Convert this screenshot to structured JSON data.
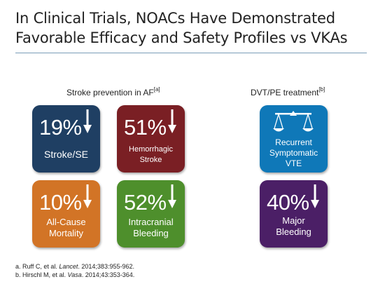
{
  "title": {
    "line1": "In Clinical Trials, NOACs Have Demonstrated",
    "line2": "Favorable Efficacy and Safety Profiles vs VKAs"
  },
  "sections": {
    "af": {
      "label": "Stroke prevention in AF",
      "ref": "[a]"
    },
    "dvt": {
      "label": "DVT/PE treatment",
      "ref": "[b]"
    }
  },
  "tiles": {
    "stroke": {
      "pct": "19%",
      "label": "Stroke/SE",
      "color": "#1f3f63",
      "direction": "down-arrow-icon"
    },
    "hemo": {
      "pct": "51%",
      "label": "Hemorrhagic\nStroke",
      "color": "#7a1f24",
      "direction": "down-arrow-icon"
    },
    "mort": {
      "pct": "10%",
      "label": "All-Cause\nMortality",
      "color": "#d27426",
      "direction": "down-arrow-icon"
    },
    "ich": {
      "pct": "52%",
      "label": "Intracranial\nBleeding",
      "color": "#4e8f2c",
      "direction": "down-arrow-icon"
    },
    "vte": {
      "label": "Recurrent\nSymptomatic\nVTE",
      "color": "#0f78b8",
      "icon": "balance-scale-icon"
    },
    "bleed": {
      "pct": "40%",
      "label": "Major\nBleeding",
      "color": "#4b1f66",
      "direction": "down-arrow-icon"
    }
  },
  "references": {
    "a": {
      "prefix": "a. Ruff C, et al. ",
      "journal": "Lancet",
      "suffix": ". 2014;383:955-962."
    },
    "b": {
      "prefix": "b. Hirschl M, et al. ",
      "journal": "Vasa",
      "suffix": ". 2014;43:353-364."
    }
  }
}
